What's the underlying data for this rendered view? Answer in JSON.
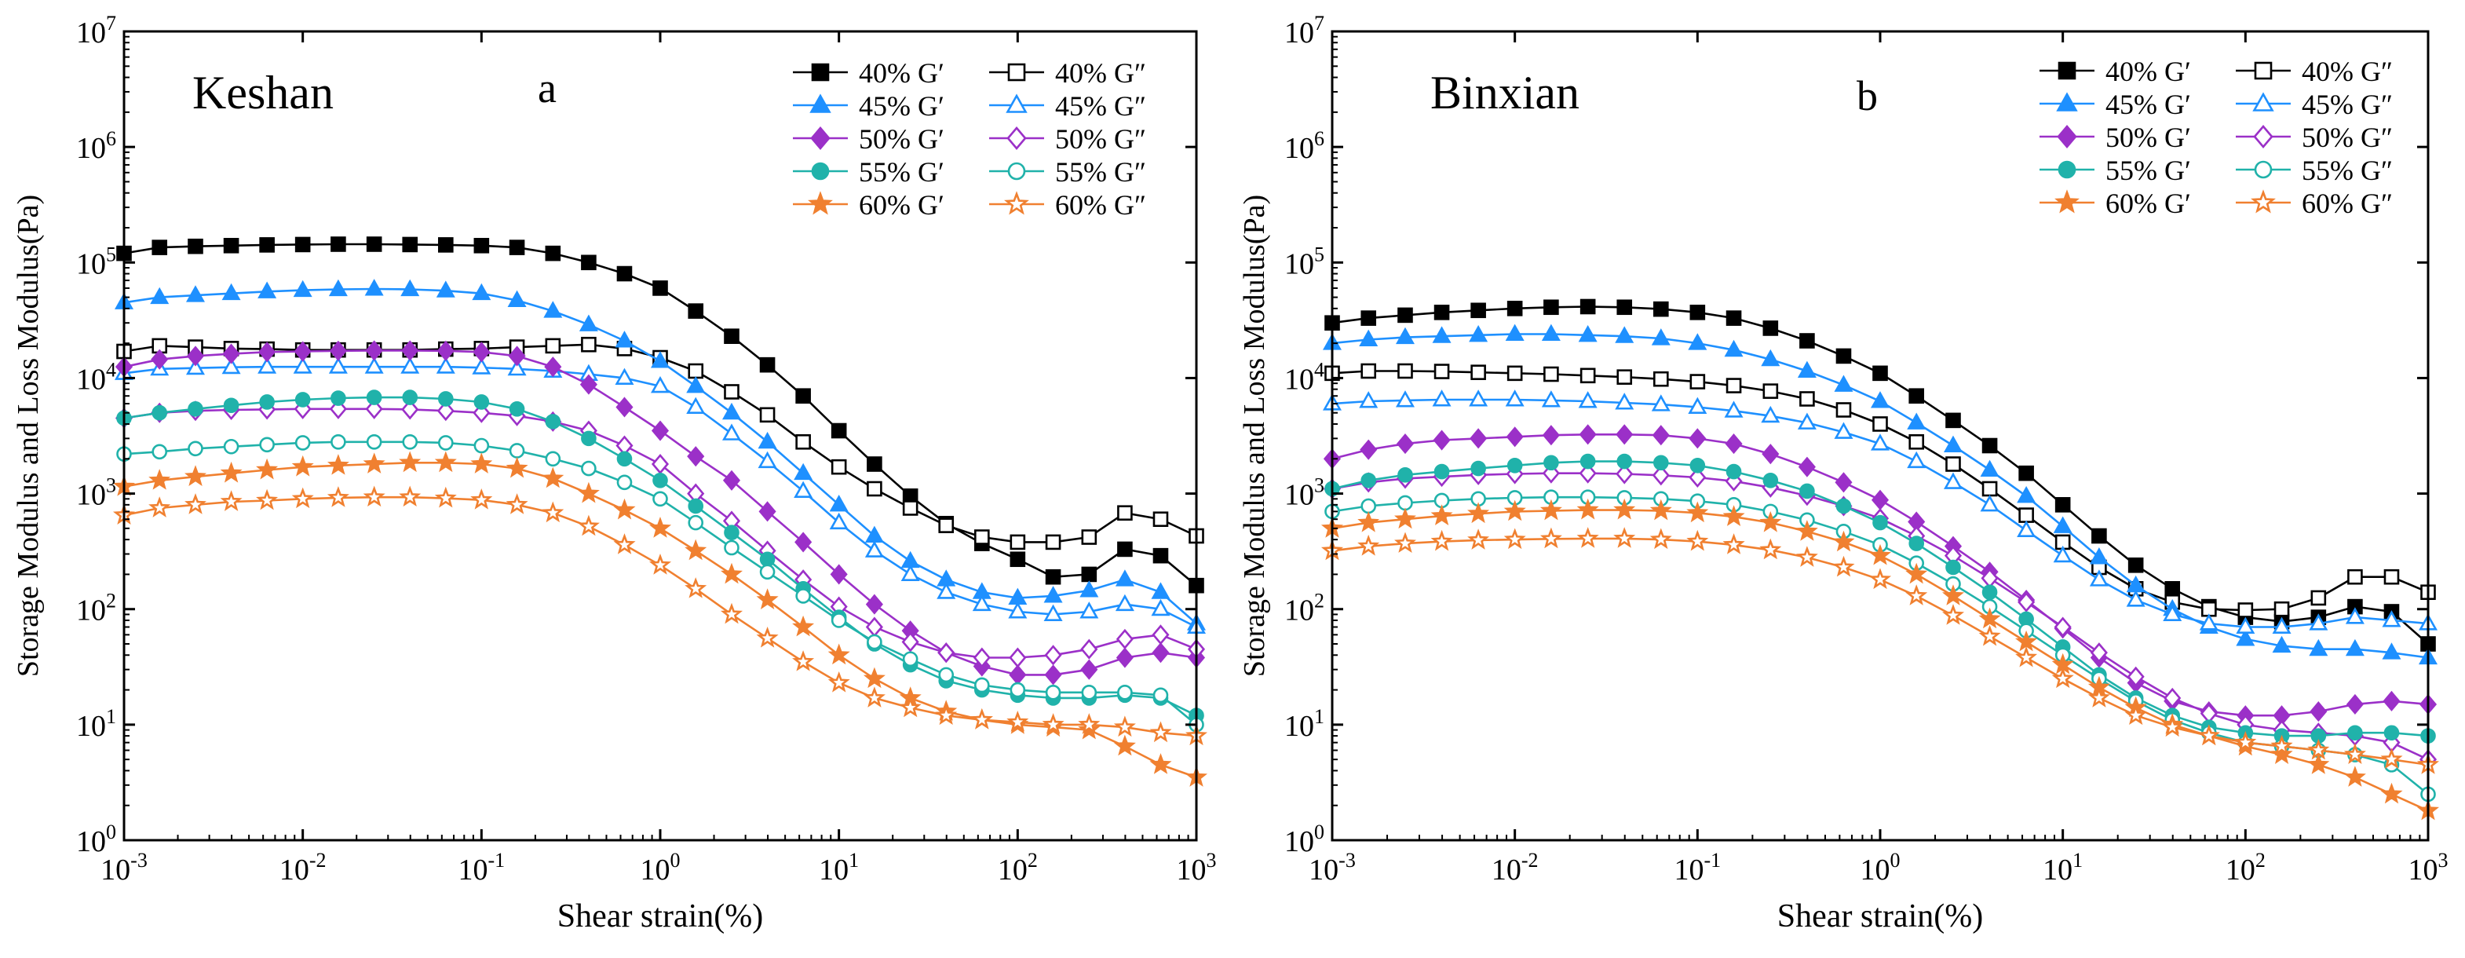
{
  "chart_data": [
    {
      "type": "line",
      "panel_label": "a",
      "site_label": "Keshan",
      "xlabel": "Shear strain(%)",
      "ylabel": "Storage Modulus and Loss Modulus(Pa)",
      "xscale": "log",
      "yscale": "log",
      "xlim": [
        0.001,
        1000
      ],
      "ylim": [
        1,
        10000000
      ],
      "x_ticks": [
        {
          "base": "10",
          "exp": "-3"
        },
        {
          "base": "10",
          "exp": "-2"
        },
        {
          "base": "10",
          "exp": "-1"
        },
        {
          "base": "10",
          "exp": "0"
        },
        {
          "base": "10",
          "exp": "1"
        },
        {
          "base": "10",
          "exp": "2"
        },
        {
          "base": "10",
          "exp": "3"
        }
      ],
      "y_ticks": [
        {
          "base": "10",
          "exp": "0"
        },
        {
          "base": "10",
          "exp": "1"
        },
        {
          "base": "10",
          "exp": "2"
        },
        {
          "base": "10",
          "exp": "3"
        },
        {
          "base": "10",
          "exp": "4"
        },
        {
          "base": "10",
          "exp": "5"
        },
        {
          "base": "10",
          "exp": "6"
        },
        {
          "base": "10",
          "exp": "7"
        }
      ],
      "legend_position": "top-right",
      "x": [
        0.001,
        0.00158,
        0.00251,
        0.00398,
        0.00631,
        0.01,
        0.0158,
        0.0251,
        0.0398,
        0.0631,
        0.1,
        0.158,
        0.251,
        0.398,
        0.631,
        1,
        1.58,
        2.51,
        3.98,
        6.31,
        10,
        15.8,
        25.1,
        39.8,
        63.1,
        100,
        158,
        251,
        398,
        631,
        1000
      ],
      "series": [
        {
          "name": "40% G′",
          "color": "#000000",
          "marker": "square",
          "filled": true,
          "values": [
            120000,
            135000,
            138000,
            140000,
            142000,
            143000,
            144000,
            144000,
            143000,
            142000,
            140000,
            135000,
            120000,
            100000,
            80000,
            60000,
            38000,
            23000,
            13000,
            7000,
            3500,
            1800,
            950,
            550,
            370,
            270,
            190,
            200,
            330,
            290,
            160
          ]
        },
        {
          "name": "40% G″",
          "color": "#000000",
          "marker": "square",
          "filled": false,
          "values": [
            17000,
            19000,
            18500,
            18000,
            17800,
            17500,
            17500,
            17500,
            17500,
            17800,
            18000,
            18500,
            19000,
            19500,
            18000,
            15000,
            11500,
            7600,
            4800,
            2800,
            1700,
            1100,
            750,
            530,
            420,
            380,
            380,
            420,
            680,
            600,
            430
          ]
        },
        {
          "name": "45% G′",
          "color": "#1e90ff",
          "marker": "triangle",
          "filled": true,
          "values": [
            45000,
            50000,
            52000,
            54000,
            56000,
            57500,
            58500,
            59000,
            58500,
            57000,
            54000,
            47000,
            38000,
            29000,
            21000,
            14000,
            8500,
            5000,
            2800,
            1500,
            800,
            430,
            260,
            180,
            140,
            125,
            130,
            145,
            180,
            140,
            75
          ]
        },
        {
          "name": "45% G″",
          "color": "#1e90ff",
          "marker": "triangle",
          "filled": false,
          "values": [
            11000,
            12000,
            12200,
            12400,
            12500,
            12500,
            12500,
            12500,
            12500,
            12500,
            12300,
            12000,
            11500,
            10800,
            10000,
            8500,
            5600,
            3300,
            1900,
            1050,
            560,
            320,
            200,
            140,
            110,
            95,
            90,
            95,
            110,
            100,
            70
          ]
        },
        {
          "name": "50% G′",
          "color": "#9b30c8",
          "marker": "diamond",
          "filled": true,
          "values": [
            12500,
            14500,
            15500,
            16200,
            16800,
            17000,
            17200,
            17300,
            17300,
            17200,
            16800,
            15500,
            12500,
            8800,
            5600,
            3500,
            2100,
            1300,
            700,
            380,
            200,
            110,
            65,
            42,
            32,
            27,
            27,
            30,
            38,
            42,
            38
          ]
        },
        {
          "name": "50% G″",
          "color": "#9b30c8",
          "marker": "diamond",
          "filled": false,
          "values": [
            4500,
            5000,
            5200,
            5300,
            5350,
            5400,
            5400,
            5400,
            5350,
            5200,
            5000,
            4700,
            4200,
            3500,
            2600,
            1800,
            1000,
            580,
            320,
            180,
            105,
            70,
            52,
            42,
            38,
            38,
            40,
            45,
            55,
            60,
            45
          ]
        },
        {
          "name": "55% G′",
          "color": "#20b2aa",
          "marker": "circle",
          "filled": true,
          "values": [
            4500,
            5000,
            5400,
            5800,
            6200,
            6500,
            6700,
            6800,
            6800,
            6600,
            6200,
            5400,
            4200,
            3000,
            2000,
            1300,
            780,
            460,
            270,
            150,
            85,
            50,
            33,
            24,
            20,
            18,
            17,
            17,
            18,
            17,
            12
          ]
        },
        {
          "name": "55% G″",
          "color": "#20b2aa",
          "marker": "circle",
          "filled": false,
          "values": [
            2200,
            2300,
            2450,
            2550,
            2650,
            2750,
            2800,
            2800,
            2800,
            2750,
            2600,
            2350,
            2000,
            1650,
            1250,
            900,
            560,
            340,
            210,
            130,
            80,
            52,
            37,
            27,
            22,
            20,
            19,
            19,
            19,
            18,
            10
          ]
        },
        {
          "name": "60% G′",
          "color": "#f08030",
          "marker": "star",
          "filled": true,
          "values": [
            1150,
            1300,
            1400,
            1500,
            1600,
            1700,
            1750,
            1800,
            1850,
            1850,
            1800,
            1650,
            1350,
            1000,
            720,
            500,
            320,
            200,
            120,
            70,
            40,
            25,
            17,
            13,
            11,
            10,
            9.5,
            9,
            6.5,
            4.5,
            3.5
          ]
        },
        {
          "name": "60% G″",
          "color": "#f08030",
          "marker": "star",
          "filled": false,
          "values": [
            650,
            750,
            800,
            850,
            870,
            900,
            920,
            930,
            930,
            910,
            880,
            800,
            680,
            520,
            360,
            240,
            150,
            90,
            56,
            35,
            23,
            17,
            14,
            12,
            11,
            10.5,
            10,
            10,
            9.5,
            8.5,
            8
          ]
        }
      ]
    },
    {
      "type": "line",
      "panel_label": "b",
      "site_label": "Binxian",
      "xlabel": "Shear strain(%)",
      "ylabel": "Storage Modulus and Loss Modulus(Pa)",
      "xscale": "log",
      "yscale": "log",
      "xlim": [
        0.001,
        1000
      ],
      "ylim": [
        1,
        10000000
      ],
      "x_ticks": [
        {
          "base": "10",
          "exp": "-3"
        },
        {
          "base": "10",
          "exp": "-2"
        },
        {
          "base": "10",
          "exp": "-1"
        },
        {
          "base": "10",
          "exp": "0"
        },
        {
          "base": "10",
          "exp": "1"
        },
        {
          "base": "10",
          "exp": "2"
        },
        {
          "base": "10",
          "exp": "3"
        }
      ],
      "y_ticks": [
        {
          "base": "10",
          "exp": "0"
        },
        {
          "base": "10",
          "exp": "1"
        },
        {
          "base": "10",
          "exp": "2"
        },
        {
          "base": "10",
          "exp": "3"
        },
        {
          "base": "10",
          "exp": "4"
        },
        {
          "base": "10",
          "exp": "5"
        },
        {
          "base": "10",
          "exp": "6"
        },
        {
          "base": "10",
          "exp": "7"
        }
      ],
      "legend_position": "top-right",
      "x": [
        0.001,
        0.00158,
        0.00251,
        0.00398,
        0.00631,
        0.01,
        0.0158,
        0.0251,
        0.0398,
        0.0631,
        0.1,
        0.158,
        0.251,
        0.398,
        0.631,
        1,
        1.58,
        2.51,
        3.98,
        6.31,
        10,
        15.8,
        25.1,
        39.8,
        63.1,
        100,
        158,
        251,
        398,
        631,
        1000
      ],
      "series": [
        {
          "name": "40% G′",
          "color": "#000000",
          "marker": "square",
          "filled": true,
          "values": [
            30000,
            33000,
            35000,
            37000,
            38500,
            40000,
            41000,
            41500,
            41000,
            39500,
            37000,
            33000,
            27000,
            21000,
            15500,
            11000,
            7000,
            4300,
            2600,
            1500,
            800,
            430,
            240,
            150,
            105,
            85,
            78,
            85,
            105,
            95,
            50
          ]
        },
        {
          "name": "40% G″",
          "color": "#000000",
          "marker": "square",
          "filled": false,
          "values": [
            11000,
            11500,
            11500,
            11400,
            11200,
            11000,
            10800,
            10500,
            10200,
            9800,
            9300,
            8600,
            7700,
            6600,
            5300,
            4000,
            2800,
            1800,
            1100,
            650,
            380,
            230,
            150,
            115,
            100,
            98,
            100,
            125,
            190,
            190,
            140
          ]
        },
        {
          "name": "45% G′",
          "color": "#1e90ff",
          "marker": "triangle",
          "filled": true,
          "values": [
            20000,
            21500,
            22500,
            23000,
            23500,
            24000,
            24000,
            23500,
            23000,
            22000,
            20000,
            17500,
            14500,
            11500,
            8700,
            6300,
            4100,
            2600,
            1600,
            950,
            520,
            280,
            160,
            100,
            70,
            55,
            48,
            45,
            45,
            42,
            38
          ]
        },
        {
          "name": "45% G″",
          "color": "#1e90ff",
          "marker": "triangle",
          "filled": false,
          "values": [
            6000,
            6300,
            6400,
            6500,
            6500,
            6500,
            6400,
            6300,
            6100,
            5900,
            5600,
            5200,
            4700,
            4100,
            3400,
            2700,
            1900,
            1250,
            800,
            480,
            290,
            180,
            120,
            90,
            75,
            70,
            70,
            75,
            85,
            80,
            75
          ]
        },
        {
          "name": "50% G′",
          "color": "#9b30c8",
          "marker": "diamond",
          "filled": true,
          "values": [
            2000,
            2400,
            2700,
            2900,
            3000,
            3100,
            3200,
            3250,
            3250,
            3200,
            3000,
            2700,
            2200,
            1700,
            1250,
            880,
            570,
            350,
            210,
            120,
            68,
            38,
            23,
            16,
            13,
            12,
            12,
            13,
            15,
            16,
            15
          ]
        },
        {
          "name": "50% G″",
          "color": "#9b30c8",
          "marker": "diamond",
          "filled": false,
          "values": [
            1100,
            1250,
            1350,
            1400,
            1450,
            1480,
            1500,
            1500,
            1480,
            1440,
            1380,
            1280,
            1130,
            960,
            780,
            610,
            430,
            290,
            185,
            115,
            70,
            42,
            26,
            17,
            12.5,
            10,
            9,
            8.5,
            8,
            7,
            5
          ]
        },
        {
          "name": "55% G′",
          "color": "#20b2aa",
          "marker": "circle",
          "filled": true,
          "values": [
            1100,
            1300,
            1450,
            1550,
            1650,
            1750,
            1850,
            1900,
            1900,
            1850,
            1750,
            1550,
            1300,
            1050,
            780,
            560,
            370,
            230,
            140,
            82,
            47,
            27,
            17,
            12,
            9.5,
            8.5,
            8,
            8,
            8.5,
            8.5,
            8
          ]
        },
        {
          "name": "55% G″",
          "color": "#20b2aa",
          "marker": "circle",
          "filled": false,
          "values": [
            700,
            780,
            830,
            870,
            900,
            920,
            930,
            930,
            920,
            900,
            860,
            800,
            700,
            590,
            470,
            360,
            250,
            165,
            105,
            65,
            40,
            25,
            16,
            11,
            8.5,
            7,
            6.5,
            6,
            5.5,
            4.5,
            2.5
          ]
        },
        {
          "name": "60% G′",
          "color": "#f08030",
          "marker": "star",
          "filled": true,
          "values": [
            500,
            560,
            600,
            640,
            670,
            700,
            710,
            720,
            720,
            710,
            680,
            630,
            560,
            470,
            380,
            290,
            200,
            130,
            82,
            52,
            33,
            21,
            14,
            10,
            8,
            6.5,
            5.5,
            4.5,
            3.5,
            2.5,
            1.8
          ]
        },
        {
          "name": "60% G″",
          "color": "#f08030",
          "marker": "star",
          "filled": false,
          "values": [
            320,
            350,
            370,
            385,
            395,
            400,
            405,
            408,
            408,
            400,
            385,
            360,
            325,
            280,
            230,
            180,
            130,
            88,
            58,
            38,
            25,
            17,
            12,
            9.5,
            8,
            7,
            6.5,
            6,
            5.5,
            5,
            4.5
          ]
        }
      ]
    }
  ]
}
